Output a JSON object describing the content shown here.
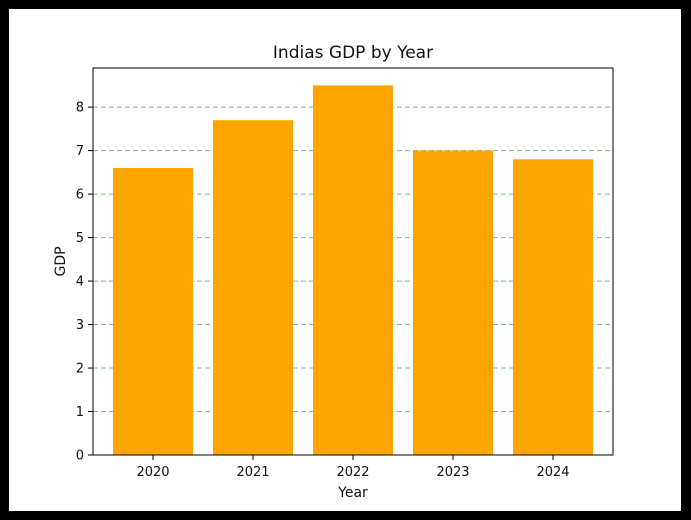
{
  "chart_data": {
    "type": "bar",
    "title": "Indias GDP by Year",
    "xlabel": "Year",
    "ylabel": "GDP",
    "categories": [
      "2020",
      "2021",
      "2022",
      "2023",
      "2024"
    ],
    "values": [
      6.6,
      7.7,
      8.5,
      7.0,
      6.8
    ],
    "ylim": [
      0,
      8.9
    ],
    "yticks": [
      0,
      1,
      2,
      3,
      4,
      5,
      6,
      7,
      8
    ],
    "grid": "y-dashed",
    "bar_color": "#ffa500",
    "grid_color": "#5cb85c"
  }
}
